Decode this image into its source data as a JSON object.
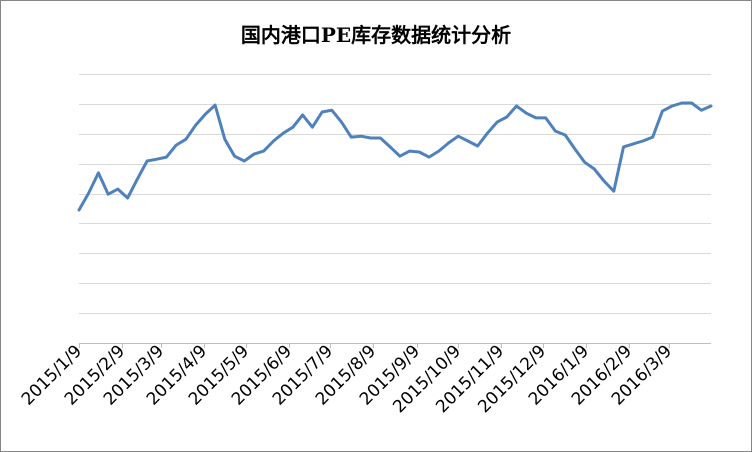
{
  "chart_data": {
    "type": "line",
    "title": "国内港口PE库存数据统计分析",
    "xlabel": "",
    "ylabel": "",
    "x_axis": "date",
    "xlim": [
      "2015/1/9",
      "2016/4/8"
    ],
    "x_ticks": [
      "2015/1/9",
      "2015/2/9",
      "2015/3/9",
      "2015/4/9",
      "2015/5/9",
      "2015/6/9",
      "2015/7/9",
      "2015/8/9",
      "2015/9/9",
      "2015/10/9",
      "2015/11/9",
      "2015/12/9",
      "2016/1/9",
      "2016/2/9",
      "2016/3/9"
    ],
    "ylim": [
      0,
      9
    ],
    "grid": true,
    "grid_step": 1,
    "legend": "none",
    "colors": {
      "line": "#4f81bd",
      "grid": "#d9d9d9",
      "axis": "#bfbfbf",
      "border": "#868686"
    },
    "x": [
      "2015/1/9",
      "2015/1/16",
      "2015/1/23",
      "2015/1/30",
      "2015/2/6",
      "2015/2/13",
      "2015/2/20",
      "2015/2/27",
      "2015/3/6",
      "2015/3/13",
      "2015/3/20",
      "2015/3/27",
      "2015/4/3",
      "2015/4/10",
      "2015/4/17",
      "2015/4/24",
      "2015/5/1",
      "2015/5/8",
      "2015/5/15",
      "2015/5/22",
      "2015/5/29",
      "2015/6/5",
      "2015/6/12",
      "2015/6/19",
      "2015/6/26",
      "2015/7/3",
      "2015/7/10",
      "2015/7/17",
      "2015/7/24",
      "2015/7/31",
      "2015/8/7",
      "2015/8/14",
      "2015/8/21",
      "2015/8/28",
      "2015/9/4",
      "2015/9/11",
      "2015/9/18",
      "2015/9/25",
      "2015/10/2",
      "2015/10/9",
      "2015/10/16",
      "2015/10/23",
      "2015/10/30",
      "2015/11/6",
      "2015/11/13",
      "2015/11/20",
      "2015/11/27",
      "2015/12/4",
      "2015/12/11",
      "2015/12/18",
      "2015/12/25",
      "2016/1/1",
      "2016/1/8",
      "2016/1/15",
      "2016/1/22",
      "2016/1/29",
      "2016/2/5",
      "2016/2/12",
      "2016/2/19",
      "2016/2/26",
      "2016/3/4",
      "2016/3/11",
      "2016/3/18",
      "2016/3/25",
      "2016/4/1",
      "2016/4/8"
    ],
    "series": [
      {
        "color": "#4f81bd",
        "values": [
          4.45,
          5.02,
          5.69,
          4.98,
          5.15,
          4.85,
          5.48,
          6.09,
          6.15,
          6.22,
          6.62,
          6.82,
          7.29,
          7.66,
          7.96,
          6.82,
          6.25,
          6.09,
          6.32,
          6.42,
          6.76,
          7.02,
          7.22,
          7.63,
          7.22,
          7.73,
          7.79,
          7.39,
          6.89,
          6.92,
          6.86,
          6.86,
          6.56,
          6.25,
          6.42,
          6.39,
          6.22,
          6.42,
          6.69,
          6.92,
          6.76,
          6.59,
          7.02,
          7.39,
          7.56,
          7.93,
          7.69,
          7.53,
          7.53,
          7.09,
          6.96,
          6.49,
          6.05,
          5.82,
          5.42,
          5.08,
          6.56,
          6.66,
          6.76,
          6.89,
          7.76,
          7.93,
          8.03,
          8.03,
          7.79,
          7.93
        ]
      }
    ]
  }
}
